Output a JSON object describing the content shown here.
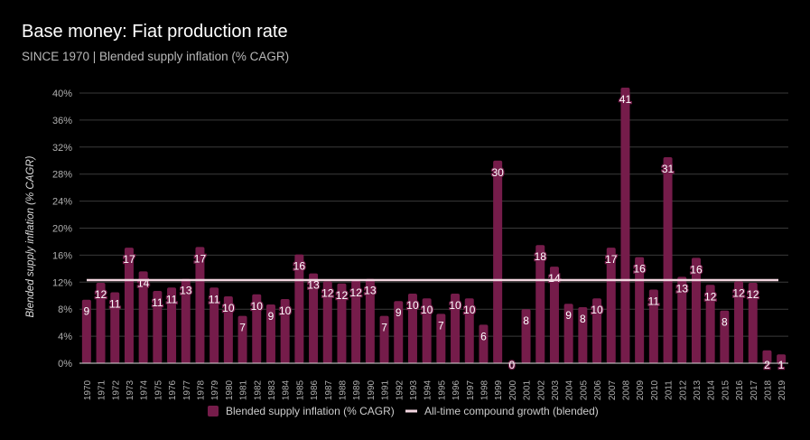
{
  "chart_data": {
    "type": "bar",
    "title": "Base money: Fiat production rate",
    "subtitle": "SINCE 1970 | Blended supply inflation (% CAGR)",
    "ylabel": "Blended supply inflation (% CAGR)",
    "xlabel": "",
    "ylim": [
      0,
      40
    ],
    "yticks": [
      "0%",
      "4%",
      "8%",
      "12%",
      "16%",
      "20%",
      "24%",
      "28%",
      "32%",
      "36%",
      "40%"
    ],
    "grid": true,
    "legend_position": "bottom",
    "categories": [
      "1970",
      "1971",
      "1972",
      "1973",
      "1974",
      "1975",
      "1976",
      "1977",
      "1978",
      "1979",
      "1980",
      "1981",
      "1982",
      "1983",
      "1984",
      "1985",
      "1986",
      "1987",
      "1988",
      "1989",
      "1990",
      "1991",
      "1992",
      "1993",
      "1994",
      "1995",
      "1996",
      "1997",
      "1998",
      "1999",
      "2000",
      "2001",
      "2002",
      "2003",
      "2004",
      "2005",
      "2006",
      "2007",
      "2008",
      "2009",
      "2010",
      "2011",
      "2012",
      "2013",
      "2014",
      "2015",
      "2016",
      "2017",
      "2018",
      "2019"
    ],
    "series": [
      {
        "name": "Blended supply inflation (% CAGR)",
        "color": "#751c4a",
        "values": [
          9.4,
          11.9,
          10.5,
          17.1,
          13.6,
          10.7,
          11.2,
          12.5,
          17.2,
          11.2,
          9.9,
          7.0,
          10.2,
          8.7,
          9.5,
          16.1,
          13.3,
          12.1,
          11.8,
          12.2,
          12.5,
          7.0,
          9.2,
          10.3,
          9.6,
          7.3,
          10.3,
          9.6,
          5.7,
          30.0,
          0.1,
          8.0,
          17.5,
          14.3,
          8.8,
          8.3,
          9.6,
          17.1,
          40.8,
          15.7,
          10.9,
          30.5,
          12.8,
          15.6,
          11.6,
          7.8,
          12.1,
          11.9,
          1.9,
          1.3
        ],
        "labels": [
          "9",
          "12",
          "11",
          "17",
          "14",
          "11",
          "11",
          "13",
          "17",
          "11",
          "10",
          "7",
          "10",
          "9",
          "10",
          "16",
          "13",
          "12",
          "12",
          "12",
          "13",
          "7",
          "9",
          "10",
          "10",
          "7",
          "10",
          "10",
          "6",
          "30",
          "0",
          "8",
          "18",
          "14",
          "9",
          "8",
          "10",
          "17",
          "41",
          "16",
          "11",
          "31",
          "13",
          "16",
          "12",
          "8",
          "12",
          "12",
          "2",
          "1"
        ]
      },
      {
        "name": "All-time compound growth (blended)",
        "color": "#f3d6e0",
        "type": "line",
        "value": 12.3
      }
    ]
  }
}
